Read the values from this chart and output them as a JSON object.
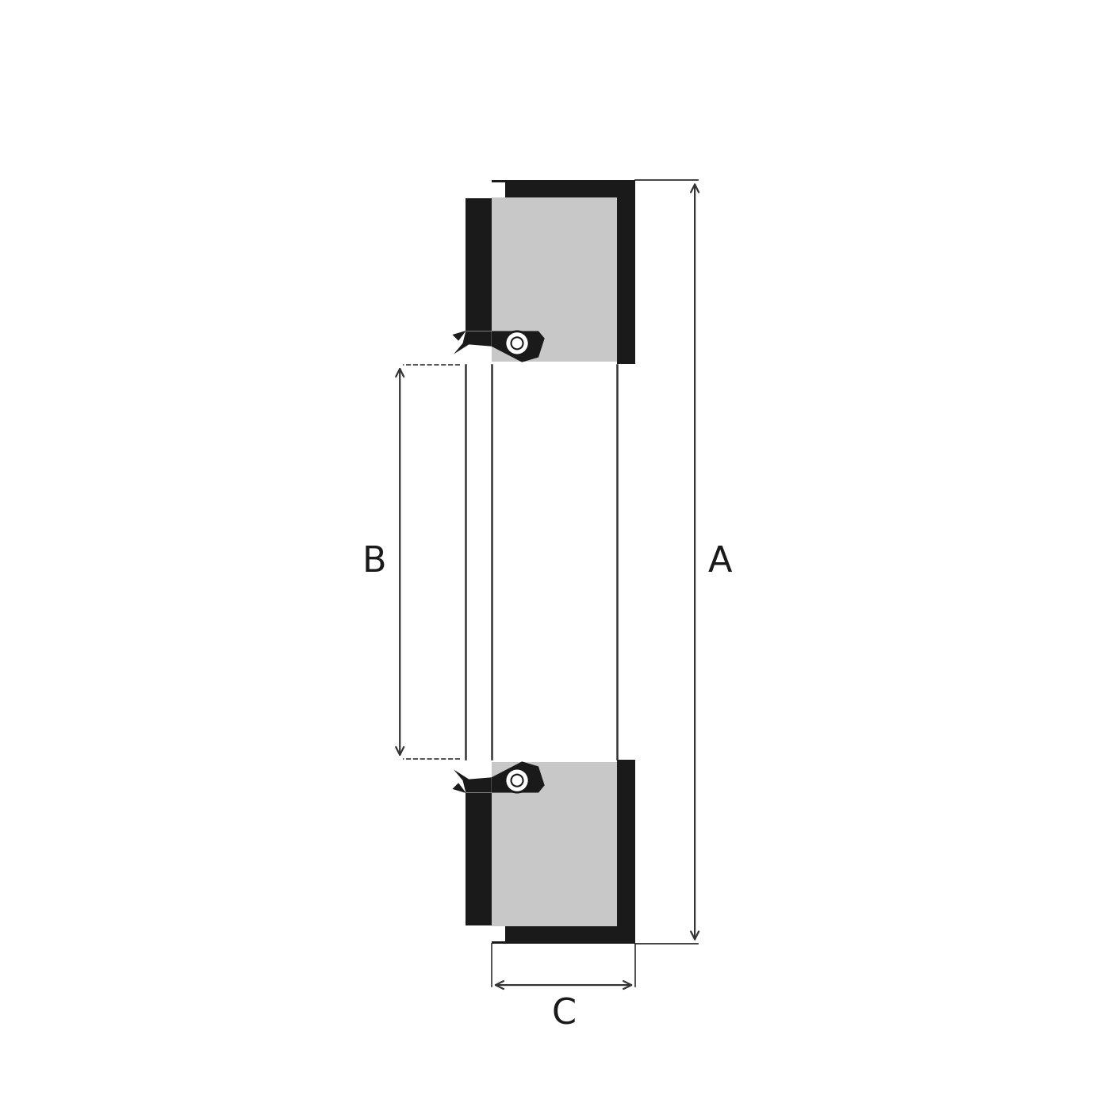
{
  "bg_color": "#ffffff",
  "fill_black": "#1a1a1a",
  "fill_gray": "#c8c8c8",
  "fill_white": "#ffffff",
  "dim_color": "#333333",
  "figsize": [
    14.06,
    14.06
  ],
  "dpi": 100,
  "label_A": "A",
  "label_B": "B",
  "label_C": "C",
  "label_fontsize": 32
}
